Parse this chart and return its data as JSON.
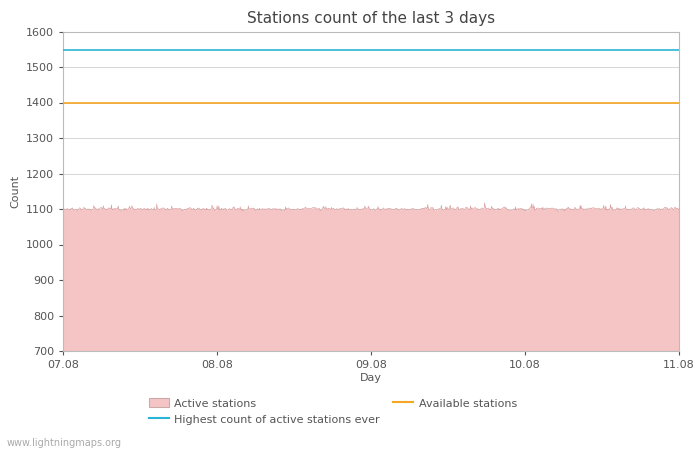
{
  "title": "Stations count of the last 3 days",
  "xlabel": "Day",
  "ylabel": "Count",
  "ylim": [
    700,
    1600
  ],
  "yticks": [
    700,
    800,
    900,
    1000,
    1100,
    1200,
    1300,
    1400,
    1500,
    1600
  ],
  "x_tick_positions": [
    0,
    1,
    2,
    3,
    4
  ],
  "x_labels": [
    "07.08",
    "08.08",
    "09.08",
    "10.08",
    "11.08"
  ],
  "active_stations_mean": 1100,
  "active_stations_noise": 5,
  "highest_count_ever": 1547,
  "available_stations": 1400,
  "fill_color": "#f5c5c5",
  "fill_edge_color": "#d89898",
  "highest_line_color": "#29b6d6",
  "available_line_color": "#f5a623",
  "grid_color": "#d0d0d0",
  "bg_color": "#ffffff",
  "plot_bg_color": "#ffffff",
  "watermark": "www.lightningmaps.org",
  "title_fontsize": 11,
  "label_fontsize": 8,
  "tick_fontsize": 8,
  "legend_fontsize": 8,
  "n_points": 1440
}
